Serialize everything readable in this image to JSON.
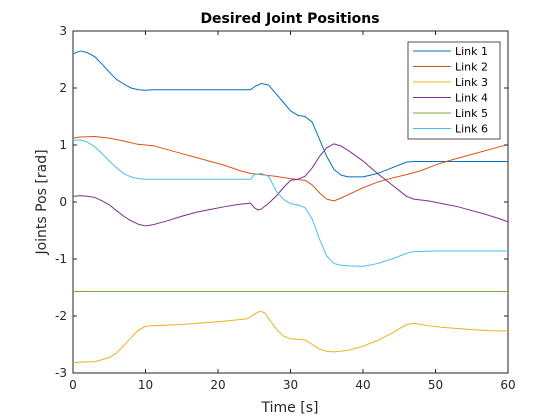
{
  "chart_data": {
    "type": "line",
    "title": "Desired Joint Positions",
    "xlabel": "Time [s]",
    "ylabel": "Joints Pos [rad]",
    "xlim": [
      0,
      60
    ],
    "ylim": [
      -3,
      3
    ],
    "xticks": [
      0,
      10,
      20,
      30,
      40,
      50,
      60
    ],
    "yticks": [
      -3,
      -2,
      -1,
      0,
      1,
      2,
      3
    ],
    "grid": false,
    "legend_position": "top-right",
    "series": [
      {
        "name": "Link 1",
        "color": "#0072BD",
        "points": [
          [
            0,
            2.6
          ],
          [
            1,
            2.65
          ],
          [
            2,
            2.62
          ],
          [
            3,
            2.55
          ],
          [
            4,
            2.42
          ],
          [
            5,
            2.28
          ],
          [
            6,
            2.15
          ],
          [
            7,
            2.07
          ],
          [
            8,
            2.0
          ],
          [
            9,
            1.97
          ],
          [
            10,
            1.96
          ],
          [
            11,
            1.97
          ],
          [
            15,
            1.97
          ],
          [
            20,
            1.97
          ],
          [
            24.5,
            1.97
          ],
          [
            25,
            2.02
          ],
          [
            26,
            2.08
          ],
          [
            27,
            2.05
          ],
          [
            28,
            1.9
          ],
          [
            29,
            1.75
          ],
          [
            30,
            1.6
          ],
          [
            31,
            1.52
          ],
          [
            32,
            1.5
          ],
          [
            33,
            1.4
          ],
          [
            34,
            1.1
          ],
          [
            35,
            0.8
          ],
          [
            36,
            0.57
          ],
          [
            37,
            0.47
          ],
          [
            38,
            0.44
          ],
          [
            40,
            0.44
          ],
          [
            42,
            0.5
          ],
          [
            44,
            0.6
          ],
          [
            46,
            0.7
          ],
          [
            47,
            0.71
          ],
          [
            50,
            0.71
          ],
          [
            55,
            0.71
          ],
          [
            60,
            0.71
          ]
        ]
      },
      {
        "name": "Link 2",
        "color": "#D95319",
        "points": [
          [
            0,
            1.12
          ],
          [
            1,
            1.14
          ],
          [
            3,
            1.15
          ],
          [
            5,
            1.12
          ],
          [
            7,
            1.07
          ],
          [
            9,
            1.01
          ],
          [
            10,
            1.0
          ],
          [
            11,
            0.99
          ],
          [
            13,
            0.92
          ],
          [
            15,
            0.85
          ],
          [
            17,
            0.78
          ],
          [
            19,
            0.71
          ],
          [
            21,
            0.64
          ],
          [
            23,
            0.55
          ],
          [
            24.5,
            0.5
          ],
          [
            26,
            0.48
          ],
          [
            28,
            0.45
          ],
          [
            30,
            0.41
          ],
          [
            32,
            0.38
          ],
          [
            33,
            0.3
          ],
          [
            34,
            0.16
          ],
          [
            35,
            0.05
          ],
          [
            36,
            0.02
          ],
          [
            37,
            0.07
          ],
          [
            38,
            0.13
          ],
          [
            40,
            0.25
          ],
          [
            42,
            0.35
          ],
          [
            44,
            0.42
          ],
          [
            46,
            0.48
          ],
          [
            48,
            0.55
          ],
          [
            50,
            0.65
          ],
          [
            52,
            0.73
          ],
          [
            54,
            0.8
          ],
          [
            56,
            0.87
          ],
          [
            58,
            0.94
          ],
          [
            60,
            1.01
          ]
        ]
      },
      {
        "name": "Link 3",
        "color": "#EDB120",
        "points": [
          [
            0,
            -2.82
          ],
          [
            1,
            -2.81
          ],
          [
            3,
            -2.8
          ],
          [
            5,
            -2.73
          ],
          [
            6,
            -2.65
          ],
          [
            7,
            -2.52
          ],
          [
            8,
            -2.38
          ],
          [
            9,
            -2.25
          ],
          [
            10,
            -2.18
          ],
          [
            11,
            -2.17
          ],
          [
            15,
            -2.15
          ],
          [
            20,
            -2.1
          ],
          [
            24,
            -2.05
          ],
          [
            25,
            -1.97
          ],
          [
            25.5,
            -1.93
          ],
          [
            26,
            -1.92
          ],
          [
            26.5,
            -1.95
          ],
          [
            27,
            -2.05
          ],
          [
            28,
            -2.22
          ],
          [
            29,
            -2.35
          ],
          [
            30,
            -2.4
          ],
          [
            32,
            -2.42
          ],
          [
            33,
            -2.5
          ],
          [
            34,
            -2.58
          ],
          [
            35,
            -2.62
          ],
          [
            36,
            -2.63
          ],
          [
            38,
            -2.6
          ],
          [
            40,
            -2.53
          ],
          [
            42,
            -2.43
          ],
          [
            44,
            -2.3
          ],
          [
            46,
            -2.15
          ],
          [
            47,
            -2.13
          ],
          [
            49,
            -2.17
          ],
          [
            51,
            -2.2
          ],
          [
            53,
            -2.22
          ],
          [
            55,
            -2.24
          ],
          [
            58,
            -2.26
          ],
          [
            60,
            -2.26
          ]
        ]
      },
      {
        "name": "Link 4",
        "color": "#7E2F8E",
        "points": [
          [
            0,
            0.1
          ],
          [
            1,
            0.11
          ],
          [
            2,
            0.1
          ],
          [
            3,
            0.08
          ],
          [
            4,
            0.02
          ],
          [
            5,
            -0.05
          ],
          [
            6,
            -0.15
          ],
          [
            7,
            -0.25
          ],
          [
            8,
            -0.33
          ],
          [
            9,
            -0.39
          ],
          [
            10,
            -0.42
          ],
          [
            11,
            -0.4
          ],
          [
            13,
            -0.33
          ],
          [
            15,
            -0.25
          ],
          [
            17,
            -0.18
          ],
          [
            19,
            -0.13
          ],
          [
            21,
            -0.08
          ],
          [
            23,
            -0.04
          ],
          [
            24.5,
            -0.02
          ],
          [
            25,
            -0.1
          ],
          [
            25.5,
            -0.14
          ],
          [
            26,
            -0.12
          ],
          [
            27,
            -0.02
          ],
          [
            28,
            0.1
          ],
          [
            29,
            0.25
          ],
          [
            30,
            0.38
          ],
          [
            31,
            0.4
          ],
          [
            32,
            0.45
          ],
          [
            33,
            0.6
          ],
          [
            34,
            0.8
          ],
          [
            35,
            0.95
          ],
          [
            36,
            1.02
          ],
          [
            37,
            0.98
          ],
          [
            38,
            0.9
          ],
          [
            40,
            0.72
          ],
          [
            42,
            0.5
          ],
          [
            44,
            0.3
          ],
          [
            46,
            0.1
          ],
          [
            47,
            0.05
          ],
          [
            49,
            0.02
          ],
          [
            51,
            -0.03
          ],
          [
            53,
            -0.08
          ],
          [
            55,
            -0.15
          ],
          [
            57,
            -0.22
          ],
          [
            59,
            -0.3
          ],
          [
            60,
            -0.35
          ]
        ]
      },
      {
        "name": "Link 5",
        "color": "#77AC30",
        "points": [
          [
            0,
            -1.57
          ],
          [
            60,
            -1.57
          ]
        ]
      },
      {
        "name": "Link 6",
        "color": "#4DBEEE",
        "points": [
          [
            0,
            1.08
          ],
          [
            1,
            1.09
          ],
          [
            2,
            1.05
          ],
          [
            3,
            0.97
          ],
          [
            4,
            0.85
          ],
          [
            5,
            0.72
          ],
          [
            6,
            0.6
          ],
          [
            7,
            0.5
          ],
          [
            8,
            0.44
          ],
          [
            9,
            0.41
          ],
          [
            10,
            0.4
          ],
          [
            15,
            0.4
          ],
          [
            20,
            0.4
          ],
          [
            24.5,
            0.4
          ],
          [
            25,
            0.48
          ],
          [
            26,
            0.5
          ],
          [
            27,
            0.45
          ],
          [
            28,
            0.2
          ],
          [
            29,
            0.05
          ],
          [
            30,
            -0.03
          ],
          [
            31,
            -0.05
          ],
          [
            32,
            -0.1
          ],
          [
            33,
            -0.3
          ],
          [
            34,
            -0.65
          ],
          [
            35,
            -0.95
          ],
          [
            36,
            -1.08
          ],
          [
            37,
            -1.11
          ],
          [
            38,
            -1.12
          ],
          [
            40,
            -1.13
          ],
          [
            42,
            -1.08
          ],
          [
            44,
            -1.0
          ],
          [
            46,
            -0.9
          ],
          [
            47,
            -0.87
          ],
          [
            50,
            -0.86
          ],
          [
            55,
            -0.86
          ],
          [
            60,
            -0.86
          ]
        ]
      }
    ]
  }
}
